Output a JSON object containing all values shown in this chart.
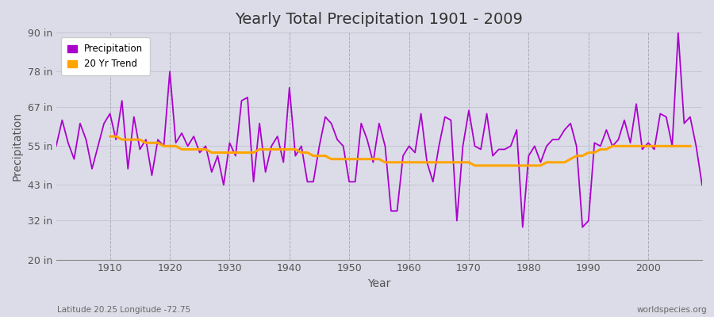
{
  "title": "Yearly Total Precipitation 1901 - 2009",
  "xlabel": "Year",
  "ylabel": "Precipitation",
  "subtitle": "Latitude 20.25 Longitude -72.75",
  "watermark": "worldspecies.org",
  "ylim": [
    20,
    90
  ],
  "yticks": [
    20,
    32,
    43,
    55,
    67,
    78,
    90
  ],
  "ytick_labels": [
    "20 in",
    "32 in",
    "43 in",
    "55 in",
    "67 in",
    "78 in",
    "90 in"
  ],
  "xlim": [
    1901,
    2009
  ],
  "xticks": [
    1910,
    1920,
    1930,
    1940,
    1950,
    1960,
    1970,
    1980,
    1990,
    2000
  ],
  "precip_color": "#AA00CC",
  "trend_color": "#FFA500",
  "fig_bg": "#DCDCE8",
  "plot_bg": "#DCDCE8",
  "years": [
    1901,
    1902,
    1903,
    1904,
    1905,
    1906,
    1907,
    1908,
    1909,
    1910,
    1911,
    1912,
    1913,
    1914,
    1915,
    1916,
    1917,
    1918,
    1919,
    1920,
    1921,
    1922,
    1923,
    1924,
    1925,
    1926,
    1927,
    1928,
    1929,
    1930,
    1931,
    1932,
    1933,
    1934,
    1935,
    1936,
    1937,
    1938,
    1939,
    1940,
    1941,
    1942,
    1943,
    1944,
    1945,
    1946,
    1947,
    1948,
    1949,
    1950,
    1951,
    1952,
    1953,
    1954,
    1955,
    1956,
    1957,
    1958,
    1959,
    1960,
    1961,
    1962,
    1963,
    1964,
    1965,
    1966,
    1967,
    1968,
    1969,
    1970,
    1971,
    1972,
    1973,
    1974,
    1975,
    1976,
    1977,
    1978,
    1979,
    1980,
    1981,
    1982,
    1983,
    1984,
    1985,
    1986,
    1987,
    1988,
    1989,
    1990,
    1991,
    1992,
    1993,
    1994,
    1995,
    1996,
    1997,
    1998,
    1999,
    2000,
    2001,
    2002,
    2003,
    2004,
    2005,
    2006,
    2007,
    2008,
    2009
  ],
  "precipitation": [
    55,
    63,
    56,
    51,
    62,
    57,
    48,
    55,
    62,
    65,
    57,
    69,
    48,
    64,
    54,
    57,
    46,
    57,
    55,
    78,
    56,
    59,
    55,
    58,
    53,
    55,
    47,
    52,
    43,
    56,
    52,
    69,
    70,
    44,
    62,
    47,
    55,
    58,
    50,
    73,
    52,
    55,
    44,
    44,
    55,
    64,
    62,
    57,
    55,
    44,
    44,
    62,
    57,
    50,
    62,
    55,
    35,
    35,
    52,
    55,
    53,
    65,
    50,
    44,
    55,
    64,
    63,
    32,
    55,
    66,
    55,
    54,
    65,
    52,
    54,
    54,
    55,
    60,
    30,
    52,
    55,
    50,
    55,
    57,
    57,
    60,
    62,
    55,
    30,
    32,
    56,
    55,
    60,
    55,
    57,
    63,
    56,
    68,
    54,
    56,
    54,
    65,
    64,
    55,
    90,
    62,
    64,
    55,
    43
  ],
  "trend": [
    null,
    null,
    null,
    null,
    null,
    null,
    null,
    null,
    null,
    58,
    58,
    57,
    57,
    57,
    57,
    56,
    56,
    56,
    55,
    55,
    55,
    54,
    54,
    54,
    54,
    54,
    53,
    53,
    53,
    53,
    53,
    53,
    53,
    53,
    54,
    54,
    54,
    54,
    54,
    54,
    54,
    53,
    53,
    52,
    52,
    52,
    51,
    51,
    51,
    51,
    51,
    51,
    51,
    51,
    51,
    50,
    50,
    50,
    50,
    50,
    50,
    50,
    50,
    50,
    50,
    50,
    50,
    50,
    50,
    50,
    49,
    49,
    49,
    49,
    49,
    49,
    49,
    49,
    49,
    49,
    49,
    49,
    50,
    50,
    50,
    50,
    51,
    52,
    52,
    53,
    53,
    54,
    54,
    55,
    55,
    55,
    55,
    55,
    55,
    55,
    55,
    55,
    55,
    55,
    55,
    55,
    55,
    null,
    null
  ]
}
